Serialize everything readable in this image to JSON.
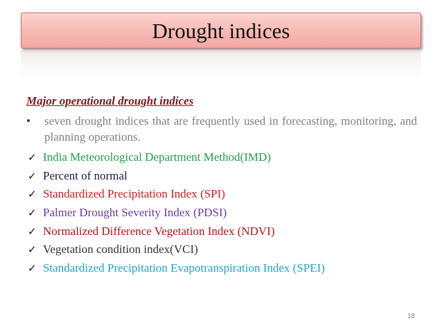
{
  "title": "Drought indices",
  "heading": "Major operational drought indices",
  "intro": {
    "bullet": "•",
    "text": "seven drought indices that are frequently used in forecasting, monitoring, and planning operations."
  },
  "check_icon": "✓",
  "indices": [
    {
      "label": "India Meteorological Department Method(IMD)",
      "color": "#1f9e4a"
    },
    {
      "label": "Percent of normal",
      "color": "#1a1a3a"
    },
    {
      "label": "Standardized Precipitation Index (SPI)",
      "color": "#d8181c"
    },
    {
      "label": "Palmer Drought Severity Index (PDSI)",
      "color": "#6a3a9c"
    },
    {
      "label": "Normalized Difference Vegetation Index (NDVI)",
      "color": "#b0151a"
    },
    {
      "label": "Vegetation condition index(VCI)",
      "color": "#333333"
    },
    {
      "label": "Standardized Precipitation Evapotranspiration Index (SPEI)",
      "color": "#1aa6c8"
    }
  ],
  "page_number": "18"
}
